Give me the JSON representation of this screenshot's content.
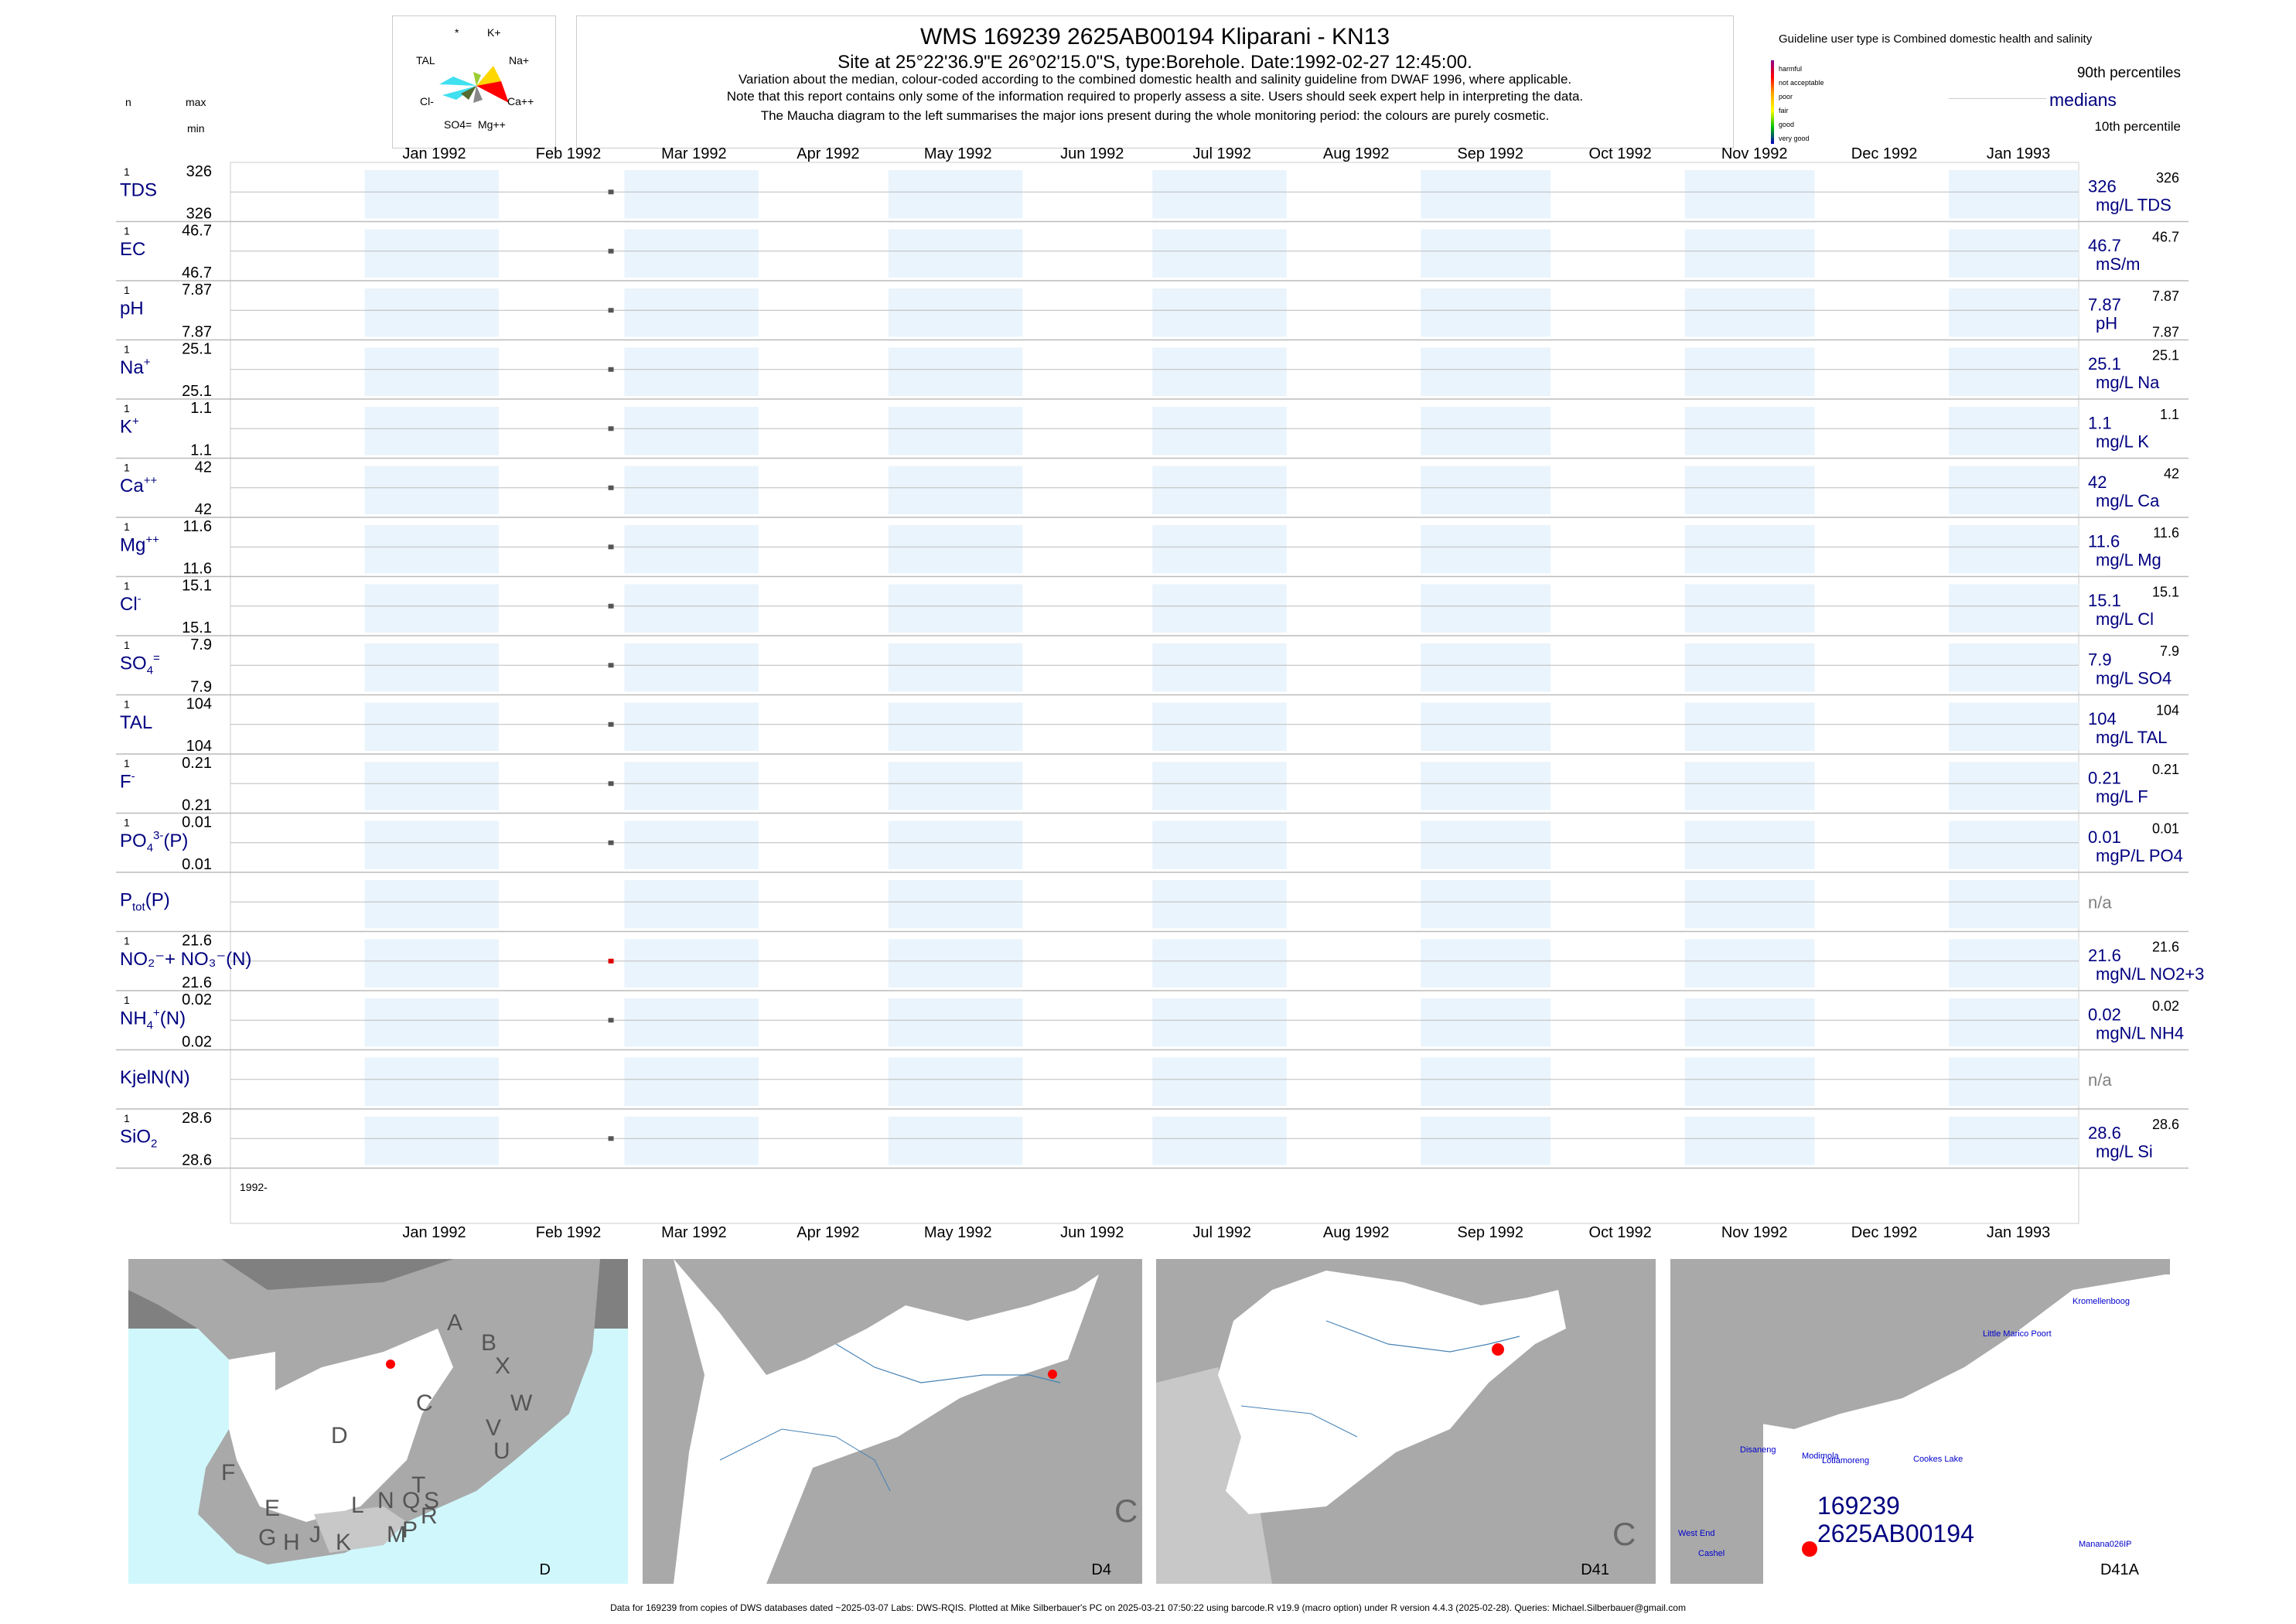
{
  "title": "WMS 169239 2625AB00194 Kliparani - KN13",
  "subtitle": "Site at 25°22'36.9\"E 26°02'15.0\"S, type:Borehole. Date:1992-02-27 12:45:00.",
  "notes": [
    "Variation about the median,  colour-coded according to the combined domestic health and salinity guideline from DWAF 1996, where applicable.",
    "Note that this report contains only some of the information required to properly assess a site. Users should seek expert help in interpreting the data.",
    "The Maucha diagram to the left summarises the major ions present during the whole monitoring period: the colours are purely cosmetic."
  ],
  "left_header": {
    "n": "n",
    "max": "max",
    "min": "min"
  },
  "maucha": {
    "labels": [
      "*",
      "K+",
      "TAL",
      "Na+",
      "Cl-",
      "Ca++",
      "SO4=",
      "Mg++"
    ],
    "colors": [
      "#40e0f0",
      "#ffd700",
      "#ff0000",
      "#ff8c00",
      "#8fbc8f",
      "#556b2f",
      "#9acd32",
      "#888888"
    ]
  },
  "legend": {
    "guideline": "Guideline user type is Combined domestic health and salinity",
    "categories": [
      "harmful",
      "not acceptable",
      "poor",
      "fair",
      "good",
      "very good"
    ],
    "category_colors": [
      "#8b008b",
      "#ff0000",
      "#ffa500",
      "#ffff00",
      "#00c000",
      "#0000c0"
    ],
    "p90": "90th percentiles",
    "medians": "medians",
    "p10": "10th percentile"
  },
  "chart_data": {
    "type": "scatter",
    "x_range": [
      "1991-12-01",
      "1993-01-31"
    ],
    "month_ticks": [
      "Jan 1992",
      "Feb 1992",
      "Mar 1992",
      "Apr 1992",
      "May 1992",
      "Jun 1992",
      "Jul 1992",
      "Aug 1992",
      "Sep 1992",
      "Oct 1992",
      "Nov 1992",
      "Dec 1992",
      "Jan 1993"
    ],
    "year_label": "1992-",
    "sample_date": "1992-02-27",
    "series": [
      {
        "name": "TDS",
        "sup": "",
        "sub": "",
        "n": "1",
        "max": "326",
        "min": "326",
        "values": [
          326
        ],
        "right_value": "326",
        "right_unit": "mg/L TDS",
        "p90": "326",
        "p10": "",
        "color": "#555555"
      },
      {
        "name": "EC",
        "sup": "",
        "sub": "",
        "n": "1",
        "max": "46.7",
        "min": "46.7",
        "values": [
          46.7
        ],
        "right_value": "46.7",
        "right_unit": "mS/m",
        "p90": "46.7",
        "p10": "",
        "color": "#555555"
      },
      {
        "name": "pH",
        "sup": "",
        "sub": "",
        "n": "1",
        "max": "7.87",
        "min": "7.87",
        "values": [
          7.87
        ],
        "right_value": "7.87",
        "right_unit": "pH",
        "p90": "7.87",
        "p10": "7.87",
        "color": "#555555"
      },
      {
        "name": "Na",
        "sup": "+",
        "sub": "",
        "n": "1",
        "max": "25.1",
        "min": "25.1",
        "values": [
          25.1
        ],
        "right_value": "25.1",
        "right_unit": "mg/L Na",
        "p90": "25.1",
        "p10": "",
        "color": "#555555"
      },
      {
        "name": "K",
        "sup": "+",
        "sub": "",
        "n": "1",
        "max": "1.1",
        "min": "1.1",
        "values": [
          1.1
        ],
        "right_value": "1.1",
        "right_unit": "mg/L K",
        "p90": "1.1",
        "p10": "",
        "color": "#555555"
      },
      {
        "name": "Ca",
        "sup": "++",
        "sub": "",
        "n": "1",
        "max": "42",
        "min": "42",
        "values": [
          42
        ],
        "right_value": "42",
        "right_unit": "mg/L Ca",
        "p90": "42",
        "p10": "",
        "color": "#555555"
      },
      {
        "name": "Mg",
        "sup": "++",
        "sub": "",
        "n": "1",
        "max": "11.6",
        "min": "11.6",
        "values": [
          11.6
        ],
        "right_value": "11.6",
        "right_unit": "mg/L Mg",
        "p90": "11.6",
        "p10": "",
        "color": "#555555"
      },
      {
        "name": "Cl",
        "sup": "-",
        "sub": "",
        "n": "1",
        "max": "15.1",
        "min": "15.1",
        "values": [
          15.1
        ],
        "right_value": "15.1",
        "right_unit": "mg/L Cl",
        "p90": "15.1",
        "p10": "",
        "color": "#555555"
      },
      {
        "name": "SO",
        "sup": "=",
        "sub": "4",
        "n": "1",
        "max": "7.9",
        "min": "7.9",
        "values": [
          7.9
        ],
        "right_value": "7.9",
        "right_unit": "mg/L SO4",
        "p90": "7.9",
        "p10": "",
        "color": "#555555"
      },
      {
        "name": "TAL",
        "sup": "",
        "sub": "",
        "n": "1",
        "max": "104",
        "min": "104",
        "values": [
          104
        ],
        "right_value": "104",
        "right_unit": "mg/L TAL",
        "p90": "104",
        "p10": "",
        "color": "#555555"
      },
      {
        "name": "F",
        "sup": "-",
        "sub": "",
        "n": "1",
        "max": "0.21",
        "min": "0.21",
        "values": [
          0.21
        ],
        "right_value": "0.21",
        "right_unit": "mg/L F",
        "p90": "0.21",
        "p10": "",
        "color": "#555555"
      },
      {
        "name": "PO",
        "sup": "3-",
        "sub": "4",
        "tail": "(P)",
        "n": "1",
        "max": "0.01",
        "min": "0.01",
        "values": [
          0.01
        ],
        "right_value": "0.01",
        "right_unit": "mgP/L PO4",
        "p90": "0.01",
        "p10": "",
        "color": "#555555"
      },
      {
        "name": "P",
        "sup": "",
        "sub": "tot",
        "tail": "(P)",
        "n": "",
        "max": "",
        "min": "",
        "values": [],
        "right_value": "n/a",
        "right_unit": "",
        "p90": "",
        "p10": "",
        "color": "#555555"
      },
      {
        "name": "NO2+NO3(N)",
        "display": "NO₂⁻+ NO₃⁻(N)",
        "n": "1",
        "max": "21.6",
        "min": "21.6",
        "values": [
          21.6
        ],
        "right_value": "21.6",
        "right_unit": "mgN/L NO2+3",
        "p90": "21.6",
        "p10": "",
        "color": "#e00000"
      },
      {
        "name": "NH",
        "sup": "+",
        "sub": "4",
        "tail": "(N)",
        "n": "1",
        "max": "0.02",
        "min": "0.02",
        "values": [
          0.02
        ],
        "right_value": "0.02",
        "right_unit": "mgN/L NH4",
        "p90": "0.02",
        "p10": "",
        "color": "#555555"
      },
      {
        "name": "KjelN(N)",
        "sup": "",
        "sub": "",
        "n": "",
        "max": "",
        "min": "",
        "values": [],
        "right_value": "n/a",
        "right_unit": "",
        "p90": "",
        "p10": "",
        "color": "#555555"
      },
      {
        "name": "SiO",
        "sup": "",
        "sub": "2",
        "n": "1",
        "max": "28.6",
        "min": "28.6",
        "values": [
          28.6
        ],
        "right_value": "28.6",
        "right_unit": "mg/L Si",
        "p90": "28.6",
        "p10": "",
        "color": "#555555"
      }
    ]
  },
  "maps": [
    {
      "label": "D",
      "letters": [
        "A",
        "B",
        "X",
        "C",
        "W",
        "V",
        "U",
        "D",
        "T",
        "F",
        "E",
        "S",
        "R",
        "Q",
        "N",
        "L",
        "G",
        "H",
        "J",
        "K",
        "M",
        "P"
      ]
    },
    {
      "label": "D4",
      "letters": [
        "C"
      ]
    },
    {
      "label": "D41",
      "letters": [
        "C"
      ]
    },
    {
      "label": "D41A",
      "places": [
        "Kromellenboog",
        "Little Marico Poort",
        "Disaneng",
        "Modimola",
        "Lotlamoreng",
        "Cookes Lake",
        "West End",
        "Cashel",
        "Manana026IP"
      ],
      "site_line1": "169239",
      "site_line2": "2625AB00194"
    }
  ],
  "footer": "Data for 169239 from copies of DWS databases dated ~2025-03-07 Labs: DWS-RQIS. Plotted at Mike Silberbauer's PC on 2025-03-21 07:50:22 using barcode.R v19.9 (macro option) under R version 4.4.3 (2025-02-28). Queries: Michael.Silberbauer@gmail.com"
}
